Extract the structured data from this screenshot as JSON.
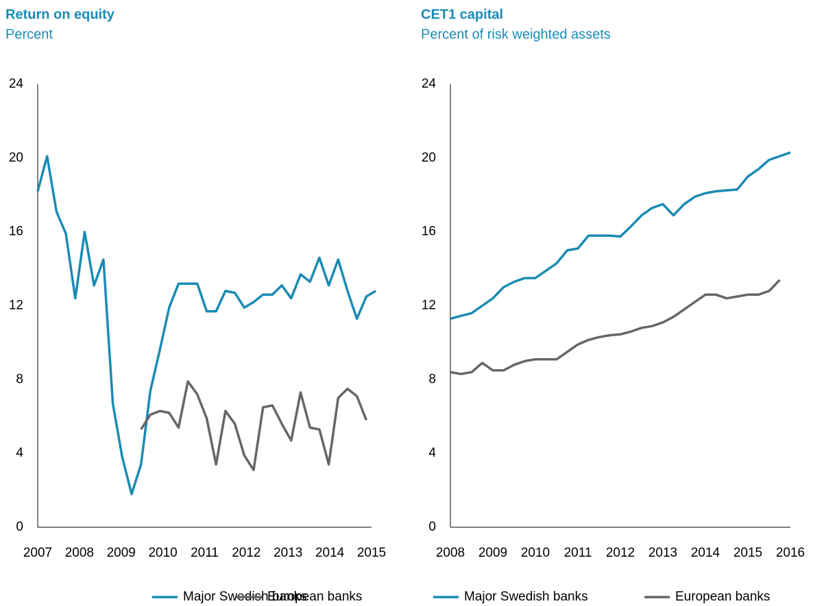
{
  "chart_data": [
    {
      "type": "line",
      "title": "Return on equity",
      "subtitle": "Percent",
      "x": [
        2007,
        2007.225,
        2007.45,
        2007.675,
        2007.9,
        2008.125,
        2008.35,
        2008.575,
        2008.8,
        2009.025,
        2009.25,
        2009.475,
        2009.7,
        2009.925,
        2010.15,
        2010.375,
        2010.6,
        2010.825,
        2011.05,
        2011.275,
        2011.5,
        2011.725,
        2011.95,
        2012.175,
        2012.4,
        2012.625,
        2012.85,
        2013.075,
        2013.3,
        2013.525,
        2013.75,
        2013.975,
        2014.2,
        2014.425,
        2014.65,
        2014.875,
        2015.1
      ],
      "series": [
        {
          "name": "Major Swedish banks",
          "color": "#1a8bb3",
          "values": [
            18.2,
            20.1,
            17.1,
            15.9,
            12.4,
            16.0,
            13.1,
            14.5,
            6.7,
            3.8,
            1.8,
            3.4,
            7.4,
            9.6,
            11.9,
            13.2,
            13.2,
            13.2,
            11.7,
            11.7,
            12.8,
            12.7,
            11.9,
            12.2,
            12.6,
            12.6,
            13.1,
            12.4,
            13.7,
            13.3,
            14.6,
            13.1,
            14.5,
            12.8,
            11.3,
            12.5,
            12.8
          ]
        },
        {
          "name": "European banks",
          "color": "#666666",
          "values": [
            null,
            null,
            null,
            null,
            null,
            null,
            null,
            null,
            null,
            null,
            null,
            5.3,
            6.1,
            6.3,
            6.2,
            5.4,
            7.9,
            7.2,
            5.9,
            3.4,
            6.3,
            5.6,
            3.9,
            3.1,
            6.5,
            6.6,
            5.6,
            4.7,
            7.3,
            5.4,
            5.3,
            3.4,
            7.0,
            7.5,
            7.1,
            5.8,
            null
          ]
        }
      ],
      "xlim": [
        2007,
        2015
      ],
      "xticks": [
        2007,
        2008,
        2009,
        2010,
        2011,
        2012,
        2013,
        2014,
        2015
      ],
      "ylim": [
        0,
        24
      ],
      "yticks": [
        0,
        4,
        8,
        12,
        16,
        20,
        24
      ],
      "grid": false
    },
    {
      "type": "line",
      "title": "CET1 capital",
      "subtitle": "Percent of risk weighted assets",
      "x": [
        2008,
        2008.25,
        2008.5,
        2008.75,
        2009,
        2009.25,
        2009.5,
        2009.75,
        2010,
        2010.25,
        2010.5,
        2010.75,
        2011,
        2011.25,
        2011.5,
        2011.75,
        2012,
        2012.25,
        2012.5,
        2012.75,
        2013,
        2013.25,
        2013.5,
        2013.75,
        2014,
        2014.25,
        2014.5,
        2014.75,
        2015,
        2015.25,
        2015.5,
        2015.75,
        2016
      ],
      "series": [
        {
          "name": "Major Swedish banks",
          "color": "#1a8bb3",
          "values": [
            11.3,
            11.45,
            11.6,
            12.0,
            12.4,
            13.0,
            13.3,
            13.5,
            13.5,
            13.9,
            14.3,
            15.0,
            15.1,
            15.8,
            15.8,
            15.8,
            15.75,
            16.3,
            16.9,
            17.3,
            17.5,
            16.9,
            17.5,
            17.9,
            18.1,
            18.2,
            18.25,
            18.3,
            19.0,
            19.4,
            19.9,
            20.1,
            20.3
          ]
        },
        {
          "name": "European banks",
          "color": "#666666",
          "values": [
            8.4,
            8.3,
            8.4,
            8.9,
            8.5,
            8.5,
            8.8,
            9.0,
            9.1,
            9.1,
            9.1,
            9.5,
            9.9,
            10.15,
            10.3,
            10.4,
            10.45,
            10.6,
            10.8,
            10.9,
            11.1,
            11.4,
            11.8,
            12.2,
            12.6,
            12.6,
            12.4,
            12.5,
            12.6,
            12.6,
            12.8,
            13.4,
            null
          ]
        }
      ],
      "xlim": [
        2008,
        2016
      ],
      "xticks": [
        2008,
        2009,
        2010,
        2011,
        2012,
        2013,
        2014,
        2015,
        2016
      ],
      "ylim": [
        0,
        24
      ],
      "yticks": [
        0,
        4,
        8,
        12,
        16,
        20,
        24
      ],
      "grid": false
    }
  ]
}
